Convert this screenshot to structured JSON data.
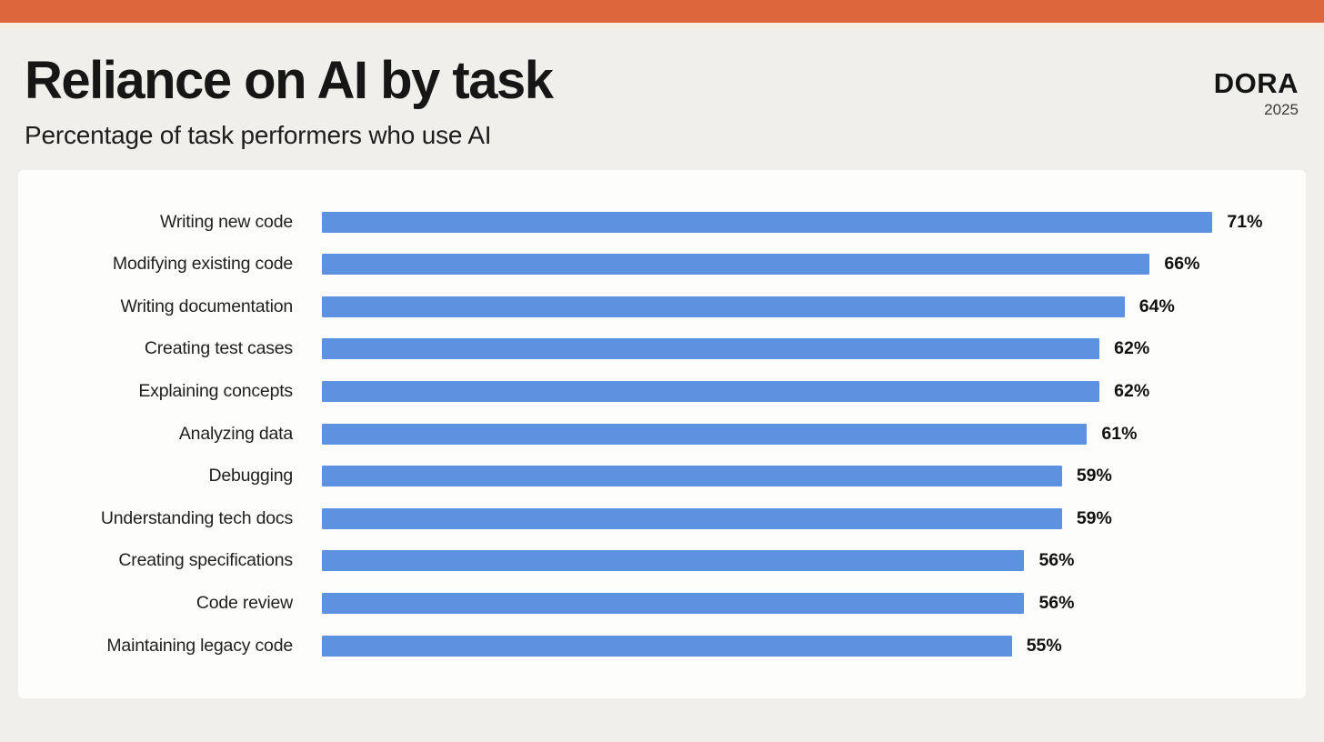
{
  "page": {
    "background_color": "#f0efeb",
    "top_bar_color": "#dd663c"
  },
  "header": {
    "title": "Reliance on AI by task",
    "subtitle": "Percentage of task performers who use AI",
    "logo": "DORA",
    "logo_year": "2025"
  },
  "chart_data": {
    "type": "bar",
    "orientation": "horizontal",
    "title": "Reliance on AI by task",
    "subtitle": "Percentage of task performers who use AI",
    "categories": [
      "Writing new code",
      "Modifying existing code",
      "Writing documentation",
      "Creating test cases",
      "Explaining concepts",
      "Analyzing data",
      "Debugging",
      "Understanding tech docs",
      "Creating specifications",
      "Code review",
      "Maintaining legacy code"
    ],
    "values": [
      71,
      66,
      64,
      62,
      62,
      61,
      59,
      59,
      56,
      56,
      55
    ],
    "value_suffix": "%",
    "bar_color": "#5c92e0",
    "xlim": [
      0,
      76.7
    ],
    "data_labels": true,
    "grid": false,
    "legend": false
  }
}
